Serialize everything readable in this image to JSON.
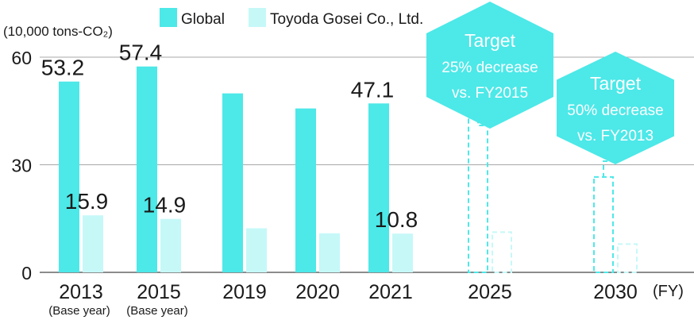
{
  "chart_data": {
    "type": "bar",
    "unit_label": "(10,000 tons-CO₂)",
    "categories": [
      "2013",
      "2015",
      "2019",
      "2020",
      "2021",
      "2025",
      "2030"
    ],
    "category_notes": [
      "(Base year)",
      "(Base year)",
      "",
      "",
      "",
      "",
      ""
    ],
    "x_unit": "(FY)",
    "ylim": [
      0,
      60
    ],
    "yticks": [
      0,
      30,
      60
    ],
    "grid": true,
    "legend_position": "top-left",
    "series": [
      {
        "name": "Global",
        "color": "#4DE8E8",
        "values": [
          53.2,
          57.4,
          49.9,
          45.7,
          47.1,
          43.1,
          26.6
        ],
        "data_labels": [
          "53.2",
          "57.4",
          "",
          "",
          "47.1",
          "",
          ""
        ],
        "target": [
          false,
          false,
          false,
          false,
          false,
          true,
          true
        ]
      },
      {
        "name": "Toyoda Gosei Co., Ltd.",
        "color": "#C6F8F8",
        "values": [
          15.9,
          14.9,
          12.3,
          10.9,
          10.8,
          11.2,
          7.9
        ],
        "data_labels": [
          "15.9",
          "14.9",
          "",
          "",
          "10.8",
          "",
          ""
        ],
        "target": [
          false,
          false,
          false,
          false,
          false,
          true,
          true
        ]
      }
    ],
    "annotations": [
      {
        "category": "2025",
        "lines": [
          "Target",
          "25% decrease",
          "vs. FY2015"
        ]
      },
      {
        "category": "2030",
        "lines": [
          "Target",
          "50% decrease",
          "vs. FY2013"
        ]
      }
    ]
  }
}
